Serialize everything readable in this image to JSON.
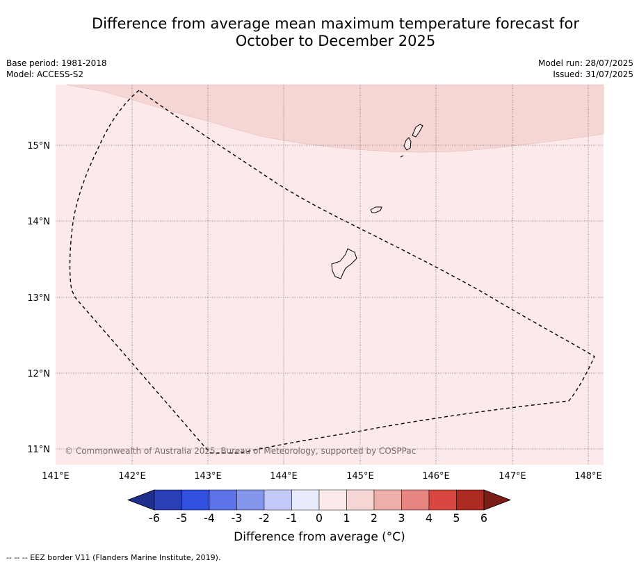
{
  "title_line1": "Difference from average mean maximum temperature forecast for",
  "title_line2": "October to December 2025",
  "base_period": "Base period: 1981-2018",
  "model": "Model: ACCESS-S2",
  "model_run": "Model run: 28/07/2025",
  "issued": "Issued: 31/07/2025",
  "lon_ticks": [
    "141°E",
    "142°E",
    "143°E",
    "144°E",
    "145°E",
    "146°E",
    "147°E",
    "148°E"
  ],
  "lat_ticks": [
    "15°N",
    "14°N",
    "13°N",
    "12°N",
    "11°N"
  ],
  "copyright": "© Commonwealth of Australia 2025, Bureau of Meteorology, supported by COSPPac",
  "colorbar": {
    "labels": [
      "-6",
      "-5",
      "-4",
      "-3",
      "-2",
      "-1",
      "0",
      "1",
      "2",
      "3",
      "4",
      "5",
      "6"
    ],
    "colors": [
      "#1f2e8a",
      "#2a3fb6",
      "#3150e0",
      "#5c73e8",
      "#8396ec",
      "#c3c9f6",
      "#e8ebfb",
      "#fbeae9",
      "#f6d6d4",
      "#eeaeaa",
      "#e6847f",
      "#d84840",
      "#ad2b22",
      "#7a1d16"
    ],
    "label": "Difference from average (°C)"
  },
  "legend_footnote": "--  --  -- EEZ border V11 (Flanders Marine Institute, 2019).",
  "map": {
    "background_color": "#fbeae9",
    "warm_band_color": "#f6d6d4",
    "regions": [
      {
        "name": "0 to 1 °C",
        "color": "#fbeae9"
      },
      {
        "name": "1 to 2 °C",
        "color": "#f6d6d4"
      }
    ]
  }
}
